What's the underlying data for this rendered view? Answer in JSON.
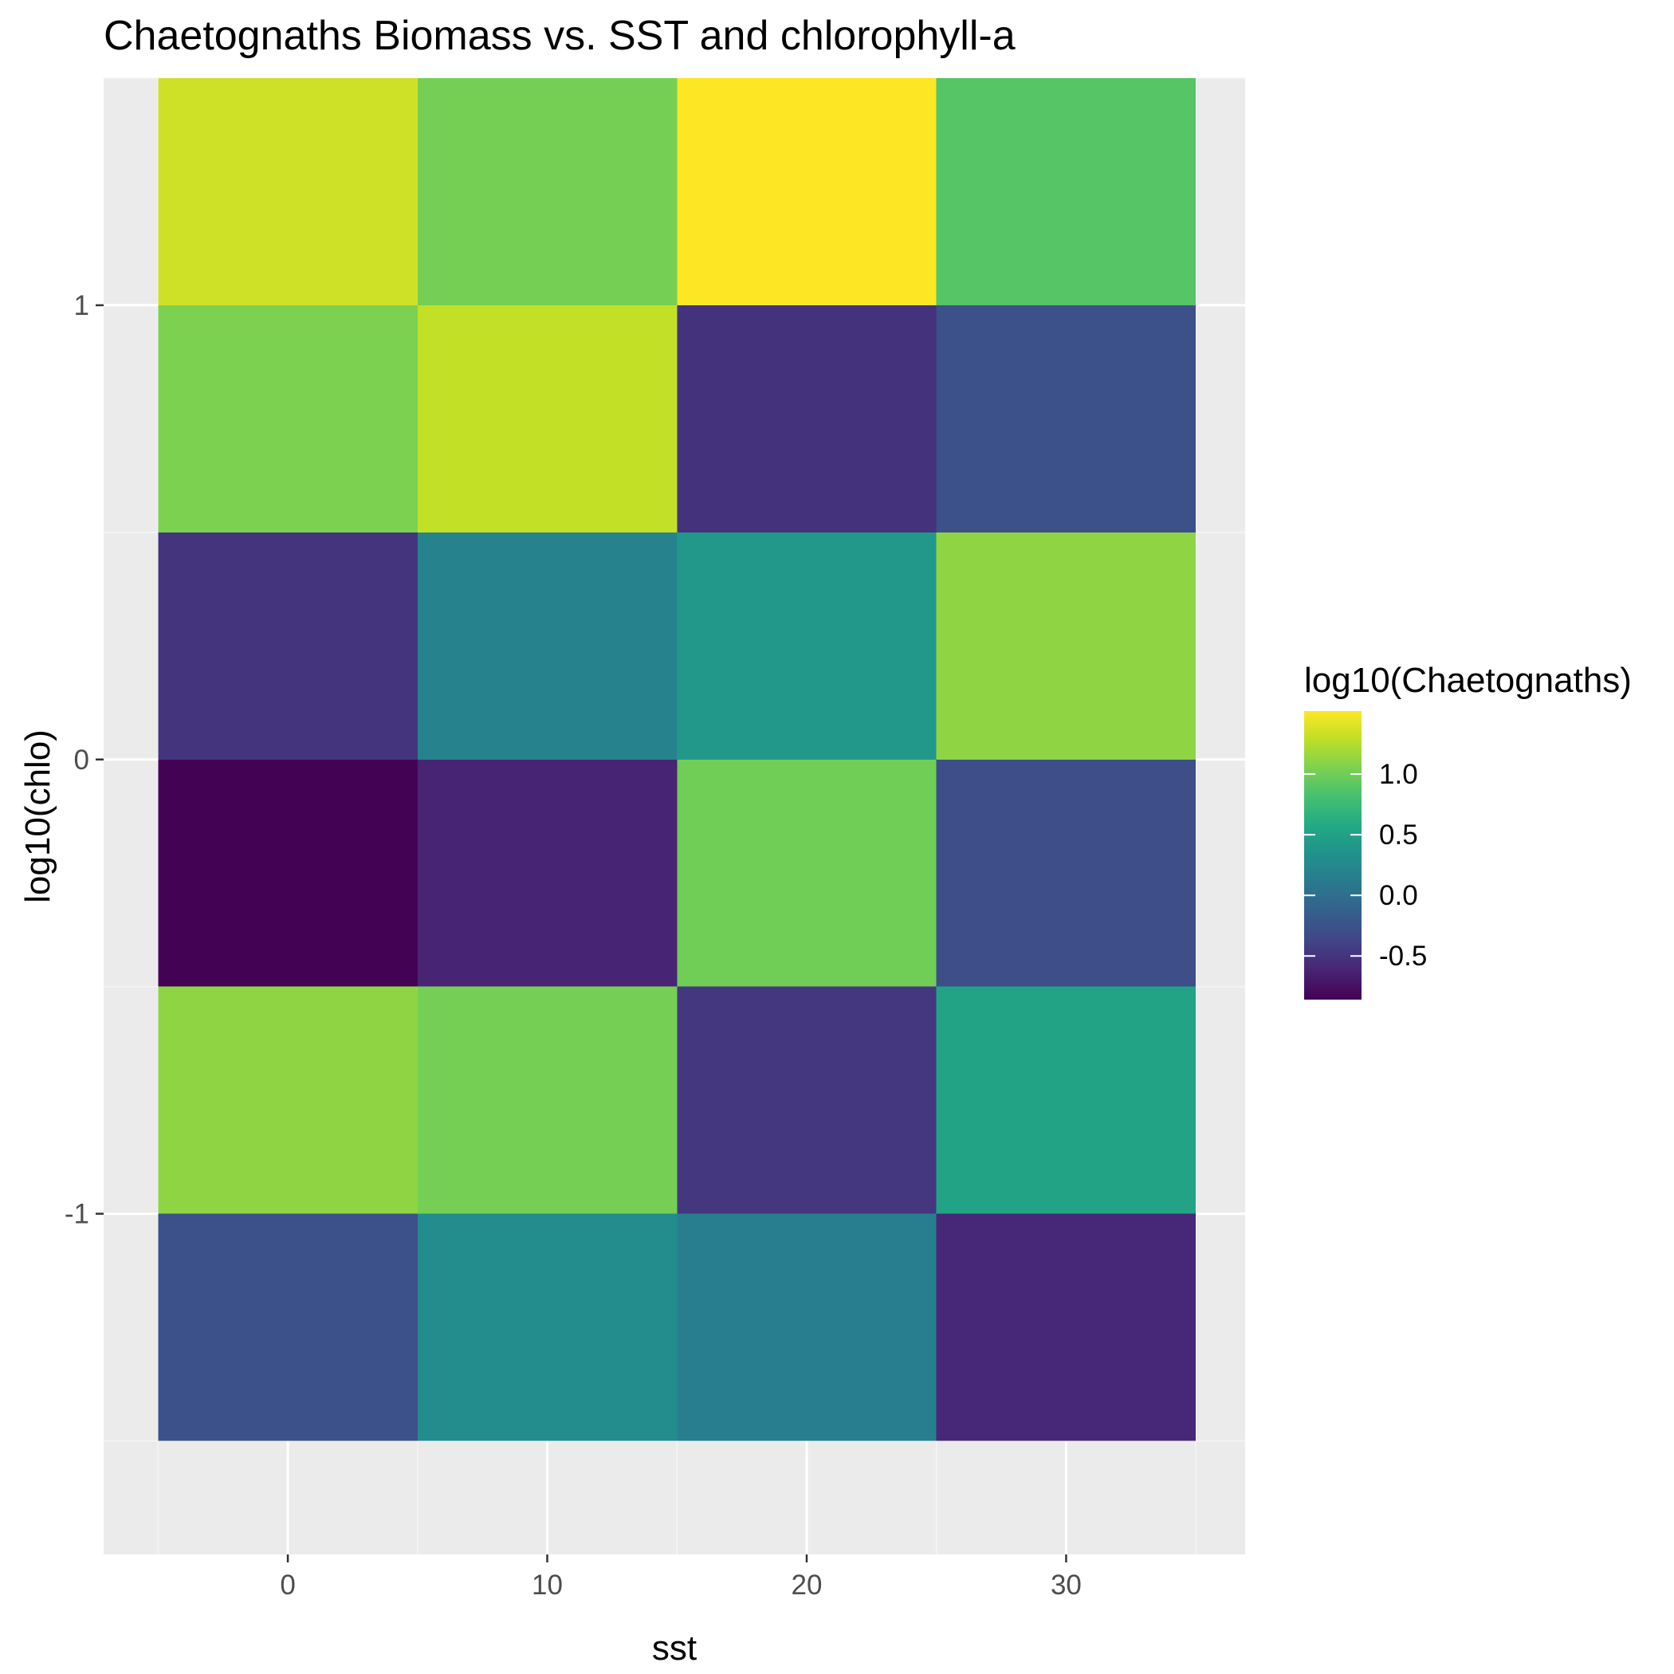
{
  "chart_data": {
    "type": "heatmap",
    "title": "Chaetognaths Biomass vs. SST and chlorophyll-a",
    "xlabel": "sst",
    "ylabel": "log10(chlo)",
    "x_centers": [
      0,
      10,
      20,
      30
    ],
    "x_range": [
      -7.1,
      36.9
    ],
    "y_centers": [
      1.25,
      0.75,
      0.25,
      -0.25,
      -0.75,
      -1.25
    ],
    "y_range": [
      -1.75,
      1.5
    ],
    "xticks": [
      0,
      10,
      20,
      30
    ],
    "xtick_labels": [
      "0",
      "10",
      "20",
      "30"
    ],
    "yticks": [
      1,
      0,
      -1
    ],
    "ytick_labels": [
      "1",
      "0",
      "-1"
    ],
    "values": [
      [
        1.35,
        1.02,
        1.52,
        0.88
      ],
      [
        1.05,
        1.3,
        -0.52,
        -0.28
      ],
      [
        -0.5,
        0.2,
        0.4,
        1.12
      ],
      [
        -0.85,
        -0.62,
        1.0,
        -0.3
      ],
      [
        1.12,
        1.02,
        -0.48,
        0.52
      ],
      [
        -0.28,
        0.28,
        0.15,
        -0.6
      ]
    ],
    "grid": true,
    "legend": {
      "title": "log10(Chaetognaths)",
      "position": "right",
      "range": [
        -0.86,
        1.52
      ],
      "breaks": [
        1.0,
        0.5,
        0.0,
        -0.5
      ],
      "break_labels": [
        "1.0",
        "0.5",
        "0.0",
        "-0.5"
      ]
    },
    "palette": "viridis"
  },
  "colors": {
    "panel_background": "#ebebeb",
    "grid_major": "#ffffff",
    "grid_minor": "#f5f5f5",
    "tick_mark": "#333333",
    "tick_text": "#4d4d4d"
  }
}
